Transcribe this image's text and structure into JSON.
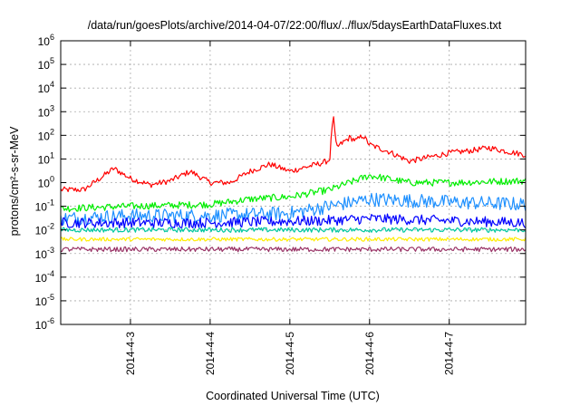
{
  "title": "/data/run/goesPlots/archive/2014-04-07/22:00/flux/../flux/5daysEarthDataFluxes.txt",
  "chart_data": {
    "type": "line",
    "title": "/data/run/goesPlots/archive/2014-04-07/22:00/flux/../flux/5daysEarthDataFluxes.txt",
    "xlabel": "Coordinated Universal Time (UTC)",
    "ylabel": "protons/cm²-s-sr-MeV",
    "yscale": "log",
    "ylim": [
      1e-06,
      1000000.0
    ],
    "xlim": [
      "2014-04-02T03:00",
      "2014-04-07T23:00"
    ],
    "x_ticks": [
      "2014-4-3",
      "2014-4-4",
      "2014-4-5",
      "2014-4-6",
      "2014-4-7"
    ],
    "y_ticks": [
      {
        "base": "10",
        "exp": "-6"
      },
      {
        "base": "10",
        "exp": "-5"
      },
      {
        "base": "10",
        "exp": "-4"
      },
      {
        "base": "10",
        "exp": "-3"
      },
      {
        "base": "10",
        "exp": "-2"
      },
      {
        "base": "10",
        "exp": "-1"
      },
      {
        "base": "10",
        "exp": "0"
      },
      {
        "base": "10",
        "exp": "1"
      },
      {
        "base": "10",
        "exp": "2"
      },
      {
        "base": "10",
        "exp": "3"
      },
      {
        "base": "10",
        "exp": "4"
      },
      {
        "base": "10",
        "exp": "5"
      },
      {
        "base": "10",
        "exp": "6"
      }
    ],
    "grid": true,
    "legend": "none",
    "series": [
      {
        "color": "#ff0000",
        "noise": 0.12,
        "points": [
          [
            "2014-04-02T03:00",
            0.5
          ],
          [
            "2014-04-02T10:00",
            0.5
          ],
          [
            "2014-04-02T16:00",
            2.0
          ],
          [
            "2014-04-02T19:00",
            4.0
          ],
          [
            "2014-04-03T00:00",
            1.5
          ],
          [
            "2014-04-03T06:00",
            0.8
          ],
          [
            "2014-04-03T12:00",
            1.2
          ],
          [
            "2014-04-03T18:00",
            3.0
          ],
          [
            "2014-04-04T00:00",
            1.0
          ],
          [
            "2014-04-04T06:00",
            1.0
          ],
          [
            "2014-04-04T12:00",
            3.0
          ],
          [
            "2014-04-04T18:00",
            6.0
          ],
          [
            "2014-04-05T00:00",
            3.0
          ],
          [
            "2014-04-05T06:00",
            5.0
          ],
          [
            "2014-04-05T10:00",
            7.0
          ],
          [
            "2014-04-05T12:00",
            9.0
          ],
          [
            "2014-04-05T13:00",
            800
          ],
          [
            "2014-04-05T14:00",
            30
          ],
          [
            "2014-04-05T16:00",
            50
          ],
          [
            "2014-04-05T18:00",
            80
          ],
          [
            "2014-04-05T20:00",
            60
          ],
          [
            "2014-04-05T22:00",
            100
          ],
          [
            "2014-04-06T00:00",
            40
          ],
          [
            "2014-04-06T06:00",
            20
          ],
          [
            "2014-04-06T12:00",
            8.0
          ],
          [
            "2014-04-06T18:00",
            12
          ],
          [
            "2014-04-07T00:00",
            18
          ],
          [
            "2014-04-07T06:00",
            22
          ],
          [
            "2014-04-07T12:00",
            30
          ],
          [
            "2014-04-07T18:00",
            20
          ],
          [
            "2014-04-07T23:00",
            15
          ]
        ]
      },
      {
        "color": "#00ee00",
        "noise": 0.15,
        "points": [
          [
            "2014-04-02T03:00",
            0.08
          ],
          [
            "2014-04-03T00:00",
            0.1
          ],
          [
            "2014-04-04T00:00",
            0.12
          ],
          [
            "2014-04-04T12:00",
            0.2
          ],
          [
            "2014-04-05T00:00",
            0.25
          ],
          [
            "2014-04-05T12:00",
            0.5
          ],
          [
            "2014-04-06T00:00",
            2.0
          ],
          [
            "2014-04-06T12:00",
            1.0
          ],
          [
            "2014-04-07T00:00",
            1.0
          ],
          [
            "2014-04-07T23:00",
            1.2
          ]
        ]
      },
      {
        "color": "#1e90ff",
        "noise": 0.3,
        "points": [
          [
            "2014-04-02T03:00",
            0.03
          ],
          [
            "2014-04-03T00:00",
            0.04
          ],
          [
            "2014-04-04T00:00",
            0.04
          ],
          [
            "2014-04-05T00:00",
            0.05
          ],
          [
            "2014-04-05T12:00",
            0.1
          ],
          [
            "2014-04-06T00:00",
            0.2
          ],
          [
            "2014-04-07T00:00",
            0.15
          ],
          [
            "2014-04-07T23:00",
            0.12
          ]
        ]
      },
      {
        "color": "#0000ff",
        "noise": 0.22,
        "points": [
          [
            "2014-04-02T03:00",
            0.02
          ],
          [
            "2014-04-04T00:00",
            0.02
          ],
          [
            "2014-04-05T12:00",
            0.025
          ],
          [
            "2014-04-06T00:00",
            0.03
          ],
          [
            "2014-04-07T23:00",
            0.02
          ]
        ]
      },
      {
        "color": "#00c8a0",
        "noise": 0.1,
        "points": [
          [
            "2014-04-02T03:00",
            0.01
          ],
          [
            "2014-04-07T23:00",
            0.01
          ]
        ]
      },
      {
        "color": "#ffee00",
        "noise": 0.08,
        "points": [
          [
            "2014-04-02T03:00",
            0.004
          ],
          [
            "2014-04-07T23:00",
            0.004
          ]
        ]
      },
      {
        "color": "#993366",
        "noise": 0.1,
        "points": [
          [
            "2014-04-02T03:00",
            0.0015
          ],
          [
            "2014-04-07T23:00",
            0.0015
          ]
        ]
      }
    ]
  }
}
